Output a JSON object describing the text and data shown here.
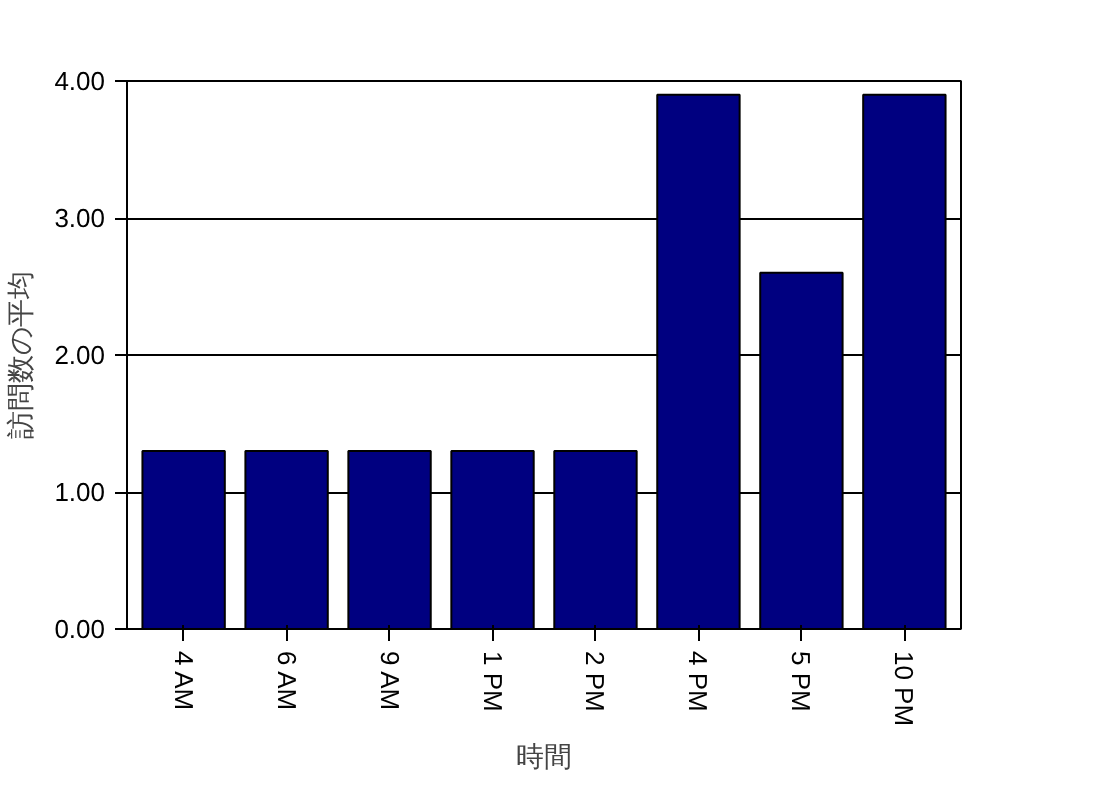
{
  "chart_data": {
    "type": "bar",
    "xlabel": "時間",
    "ylabel": "訪問数の平均",
    "categories": [
      "4 AM",
      "6 AM",
      "9 AM",
      "1 PM",
      "2 PM",
      "4 PM",
      "5 PM",
      "10 PM"
    ],
    "values": [
      1.3,
      1.3,
      1.3,
      1.3,
      1.3,
      3.9,
      2.6,
      3.9
    ],
    "color": "#000080",
    "ylim": [
      0,
      4
    ],
    "yticks": [
      {
        "value": 0,
        "label": "0.00"
      },
      {
        "value": 1,
        "label": "1.00"
      },
      {
        "value": 2,
        "label": "2.00"
      },
      {
        "value": 3,
        "label": "3.00"
      },
      {
        "value": 4,
        "label": "4.00"
      }
    ],
    "grid": "y"
  }
}
